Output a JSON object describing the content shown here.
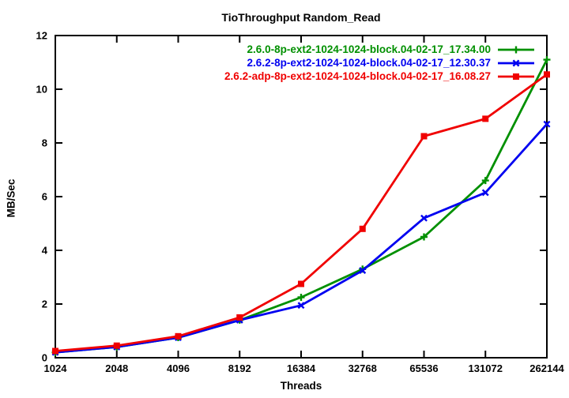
{
  "chart_data": {
    "type": "line",
    "title": "TioThroughput Random_Read",
    "xlabel": "Threads",
    "ylabel": "MB/Sec",
    "x_scale": "log2",
    "grid": false,
    "legend_position": "top-right-inside",
    "categories": [
      1024,
      2048,
      4096,
      8192,
      16384,
      32768,
      65536,
      131072,
      262144
    ],
    "x_tick_labels": [
      "1024",
      "2048",
      "4096",
      "8192",
      "16384",
      "32768",
      "65536",
      "131072",
      "262144"
    ],
    "y_ticks": [
      0,
      2,
      4,
      6,
      8,
      10,
      12
    ],
    "y_tick_labels": [
      "0",
      "2",
      "4",
      "6",
      "8",
      "10",
      "12"
    ],
    "ylim": [
      0,
      12
    ],
    "axis_color": "#000000",
    "series": [
      {
        "name": "2.6.0-8p-ext2-1024-1024-block.04-02-17_17.34.00",
        "color": "#009000",
        "marker": "plus",
        "values": [
          0.2,
          0.4,
          0.75,
          1.4,
          2.25,
          3.3,
          4.5,
          6.6,
          11.1
        ]
      },
      {
        "name": "2.6.2-8p-ext2-1024-1024-block.04-02-17_12.30.37",
        "color": "#0000f0",
        "marker": "x",
        "values": [
          0.2,
          0.4,
          0.75,
          1.4,
          1.95,
          3.25,
          5.2,
          6.15,
          8.7
        ]
      },
      {
        "name": "2.6.2-adp-8p-ext2-1024-1024-block.04-02-17_16.08.27",
        "color": "#f00000",
        "marker": "square",
        "values": [
          0.25,
          0.45,
          0.8,
          1.5,
          2.75,
          4.8,
          8.25,
          8.9,
          10.55
        ]
      }
    ]
  }
}
